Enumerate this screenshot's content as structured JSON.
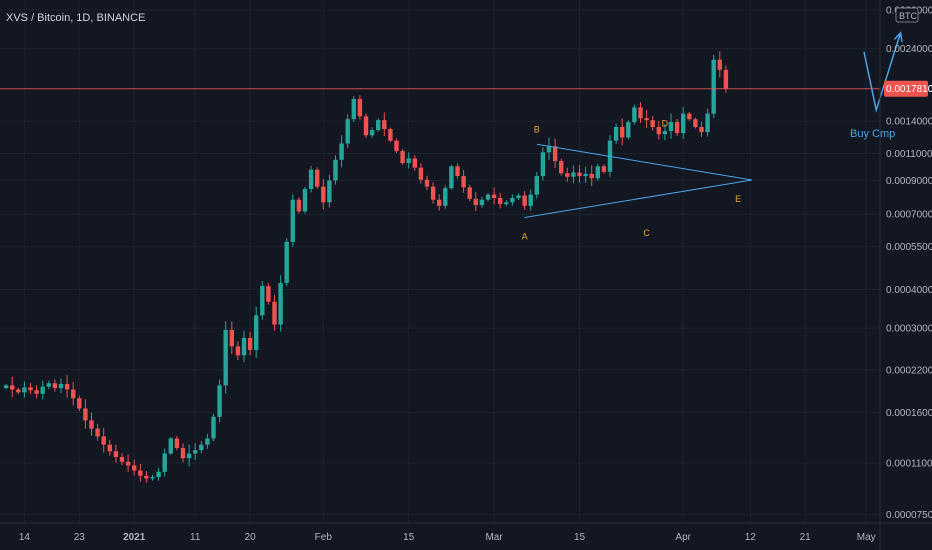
{
  "header": {
    "title": "XVS / Bitcoin, 1D, BINANCE",
    "currency_badge": "BTC"
  },
  "price_tag": "0.0017810",
  "annotation_text": "Buy Cmp",
  "colors": {
    "background": "#131722",
    "up": "#26a69a",
    "down": "#ef5350",
    "pattern_line": "#4aa3e6",
    "pattern_labels": "#f0a030",
    "price_line": "#ef5350",
    "text": "#b2b5be"
  },
  "chart_data": {
    "type": "candlestick",
    "title": "XVS / Bitcoin, 1D, BINANCE",
    "y_scale": "log",
    "ylim": [
      6.2e-05,
      0.0032
    ],
    "y_ticks": [
      "0.0032000",
      "0.0024000",
      "0.0017810",
      "0.0014000",
      "0.0011000",
      "0.0009000",
      "0.0007000",
      "0.0005500",
      "0.0004000",
      "0.0003000",
      "0.0002200",
      "0.0001600",
      "0.0001100",
      "0.0000750"
    ],
    "x_ticks": [
      {
        "date": "2020-12-14",
        "label": "14"
      },
      {
        "date": "2020-12-23",
        "label": "23"
      },
      {
        "date": "2021-01-01",
        "label": "2021"
      },
      {
        "date": "2021-01-11",
        "label": "11"
      },
      {
        "date": "2021-01-20",
        "label": "20"
      },
      {
        "date": "2021-02-01",
        "label": "Feb"
      },
      {
        "date": "2021-02-15",
        "label": "15"
      },
      {
        "date": "2021-03-01",
        "label": "Mar"
      },
      {
        "date": "2021-03-15",
        "label": "15"
      },
      {
        "date": "2021-04-01",
        "label": "Apr"
      },
      {
        "date": "2021-04-12",
        "label": "12"
      },
      {
        "date": "2021-04-21",
        "label": "21"
      },
      {
        "date": "2021-05-01",
        "label": "May"
      }
    ],
    "last_price": 0.001781,
    "ohlc_close": [
      0.000196,
      0.00019,
      0.000186,
      0.000193,
      0.000189,
      0.000184,
      0.000194,
      0.000199,
      0.000192,
      0.000198,
      0.00019,
      0.000178,
      0.000165,
      0.000151,
      0.000142,
      0.000134,
      0.000126,
      0.00012,
      0.000115,
      0.000111,
      0.000108,
      0.000104,
      0.0001,
      9.8e-05,
      9.9e-05,
      0.000103,
      0.000118,
      0.000132,
      0.000123,
      0.000114,
      0.000118,
      0.000121,
      0.000126,
      0.000132,
      0.000155,
      0.000196,
      0.000296,
      0.000262,
      0.000245,
      0.000279,
      0.000255,
      0.00033,
      0.00041,
      0.000365,
      0.000308,
      0.00042,
      0.00057,
      0.00078,
      0.000715,
      0.000845,
      0.000975,
      0.00086,
      0.000765,
      0.0009,
      0.00105,
      0.001185,
      0.00142,
      0.00165,
      0.00145,
      0.00126,
      0.00131,
      0.00141,
      0.00132,
      0.00121,
      0.00112,
      0.001025,
      0.00106,
      0.00099,
      0.000905,
      0.00086,
      0.00078,
      0.000745,
      0.00085,
      0.001,
      0.00093,
      0.000855,
      0.000785,
      0.00075,
      0.00078,
      0.00081,
      0.00079,
      0.000755,
      0.000765,
      0.00079,
      0.000805,
      0.000745,
      0.00081,
      0.00093,
      0.00111,
      0.00116,
      0.00104,
      0.00095,
      0.000925,
      0.000955,
      0.00093,
      0.000945,
      0.000915,
      0.001,
      0.00096,
      0.00121,
      0.00134,
      0.00124,
      0.00139,
      0.00155,
      0.00143,
      0.00141,
      0.00134,
      0.00127,
      0.0013,
      0.00139,
      0.00128,
      0.00148,
      0.00142,
      0.00134,
      0.00129,
      0.00148,
      0.00221,
      0.00205,
      0.001781
    ],
    "annotations": {
      "pattern_points": [
        {
          "label": "A",
          "date": "2021-03-06",
          "price": 0.000725
        },
        {
          "label": "B",
          "date": "2021-03-08",
          "price": 0.00111
        },
        {
          "label": "C",
          "date": "2021-03-26",
          "price": 0.000745
        },
        {
          "label": "D",
          "date": "2021-03-29",
          "price": 0.00116
        },
        {
          "label": "E",
          "date": "2021-04-10",
          "price": 0.00096
        }
      ],
      "projection_arrow": [
        {
          "date": "2021-04-29",
          "price": 0.00221
        },
        {
          "date": "2021-05-01",
          "price": 0.00152
        },
        {
          "date": "2021-05-05",
          "price": 0.0027
        }
      ]
    }
  }
}
